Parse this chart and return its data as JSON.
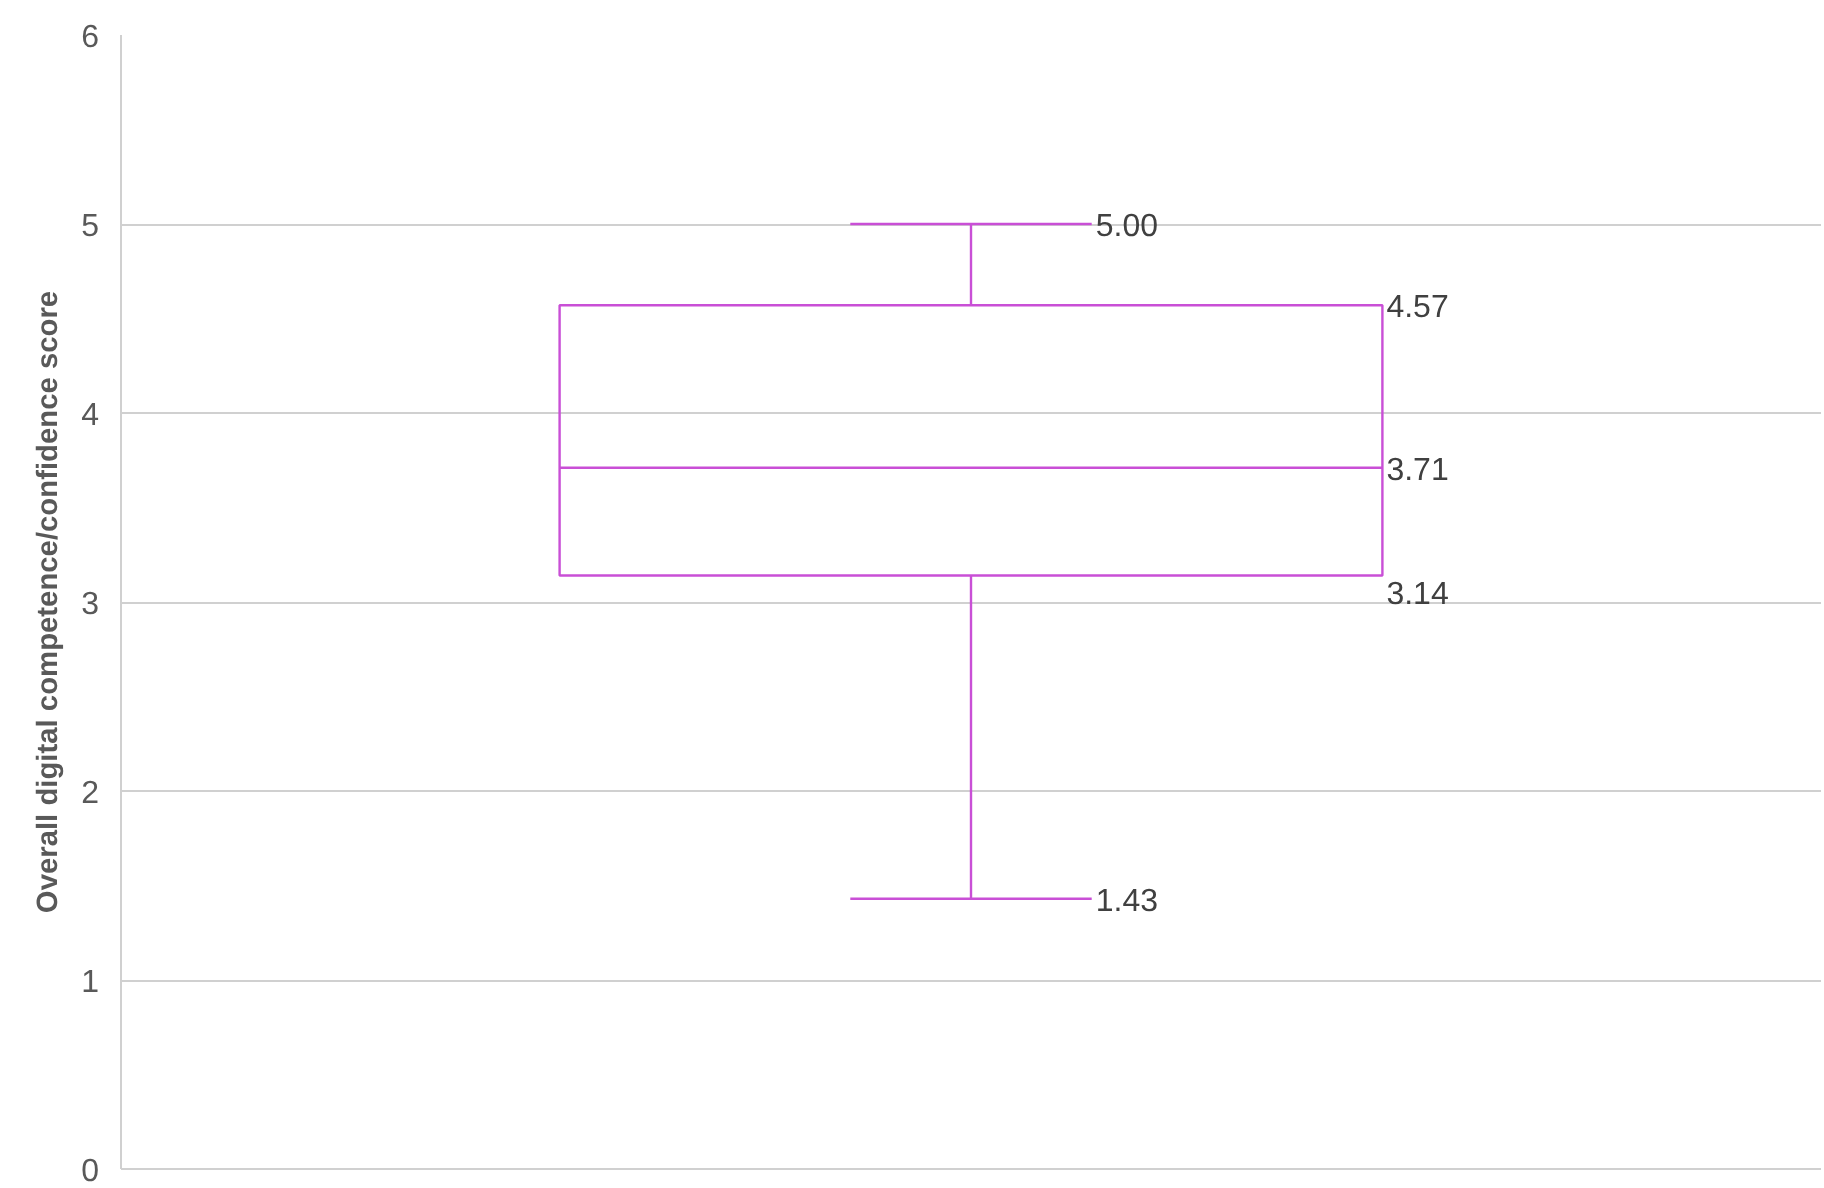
{
  "chart_data": {
    "type": "box",
    "ylabel": "Overall digital competence/confidence score",
    "categories": [
      null
    ],
    "boxes": [
      {
        "low": 1.43,
        "q1": 3.14,
        "median": 3.71,
        "q3": 4.57,
        "high": 5.0
      }
    ],
    "annotations": [
      "5.00",
      "4.57",
      "3.71",
      "3.14",
      "1.43"
    ],
    "color": "#c94fd6",
    "ylim": [
      0,
      6
    ],
    "yticks": [
      0,
      1,
      2,
      3,
      4,
      5,
      6
    ],
    "grid": "y"
  }
}
